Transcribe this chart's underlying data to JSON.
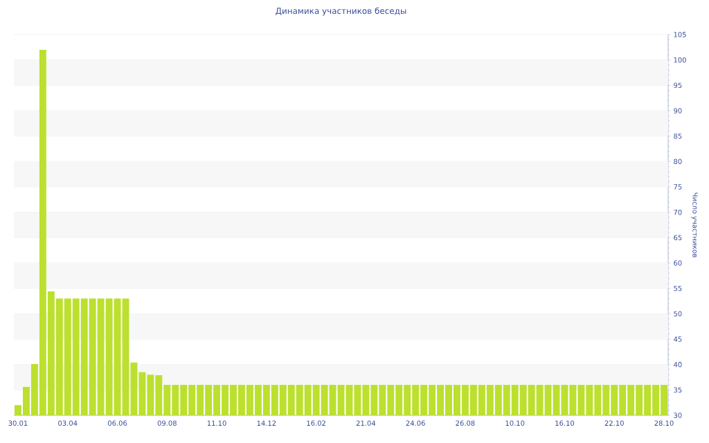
{
  "chart_data": {
    "type": "bar",
    "title": "Динамика участников беседы",
    "ylabel": "Число участников",
    "categories": [
      "30.01",
      null,
      null,
      null,
      null,
      null,
      "03.04",
      null,
      null,
      null,
      null,
      null,
      "06.06",
      null,
      null,
      null,
      null,
      null,
      "09.08",
      null,
      null,
      null,
      null,
      null,
      "11.10",
      null,
      null,
      null,
      null,
      null,
      "14.12",
      null,
      null,
      null,
      null,
      null,
      "16.02",
      null,
      null,
      null,
      null,
      null,
      "21.04",
      null,
      null,
      null,
      null,
      null,
      "24.06",
      null,
      null,
      null,
      null,
      null,
      "26.08",
      null,
      null,
      null,
      null,
      null,
      "10.10",
      null,
      null,
      null,
      null,
      null,
      "16.10",
      null,
      null,
      null,
      null,
      null,
      "22.10",
      null,
      null,
      null,
      null,
      null,
      "28.10"
    ],
    "values": [
      32,
      35.6,
      40.1,
      102,
      54.4,
      53,
      53,
      53,
      53,
      53,
      53,
      53,
      53,
      53,
      40.4,
      38.5,
      38,
      37.9,
      36,
      36,
      36,
      36,
      36,
      36,
      36,
      36,
      36,
      36,
      36,
      36,
      36,
      36,
      36,
      36,
      36,
      36,
      36,
      36,
      36,
      36,
      36,
      36,
      36,
      36,
      36,
      36,
      36,
      36,
      36,
      36,
      36,
      36,
      36,
      36,
      36,
      36,
      36,
      36,
      36,
      36,
      36,
      36,
      36,
      36,
      36,
      36,
      36,
      36,
      36,
      36,
      36,
      36,
      36,
      36,
      36,
      36,
      36,
      36,
      36
    ],
    "color": "#bbe02e",
    "ylim": [
      30,
      105
    ],
    "yticks": [
      30,
      35,
      40,
      45,
      50,
      55,
      60,
      65,
      70,
      75,
      80,
      85,
      90,
      95,
      100,
      105
    ],
    "grid": "y"
  }
}
